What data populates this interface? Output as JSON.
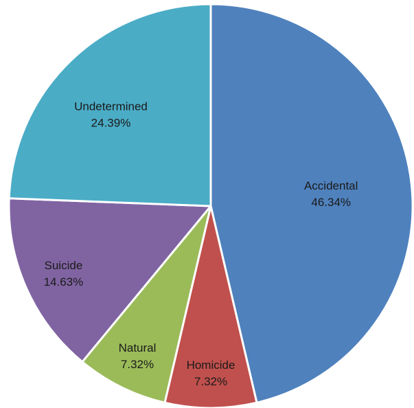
{
  "chart_data": {
    "type": "pie",
    "title": "",
    "slices": [
      {
        "name": "Accidental",
        "value": 46.34,
        "label": "46.34%",
        "color": "#4F81BD"
      },
      {
        "name": "Homicide",
        "value": 7.32,
        "label": "7.32%",
        "color": "#C0504D"
      },
      {
        "name": "Natural",
        "value": 7.32,
        "label": "7.32%",
        "color": "#9BBB59"
      },
      {
        "name": "Suicide",
        "value": 14.63,
        "label": "14.63%",
        "color": "#8064A2"
      },
      {
        "name": "Undetermined",
        "value": 24.39,
        "label": "24.39%",
        "color": "#4BACC6"
      }
    ]
  }
}
